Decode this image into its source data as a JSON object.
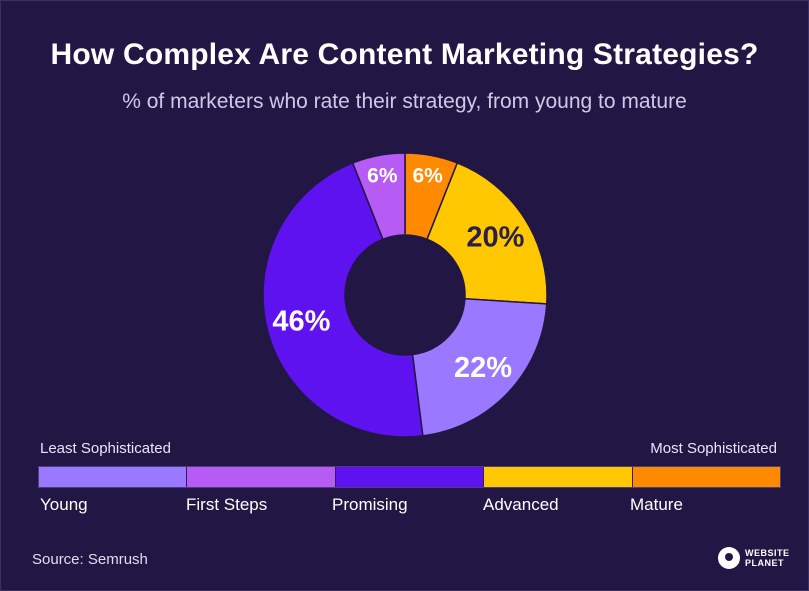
{
  "header": {
    "title": "How Complex Are Content Marketing Strategies?",
    "subtitle": "% of marketers who rate their strategy, from young to mature"
  },
  "chart_data": {
    "type": "pie",
    "variant": "donut",
    "categories": [
      "Mature",
      "Advanced",
      "Young",
      "Promising",
      "First Steps"
    ],
    "values": [
      6,
      20,
      22,
      46,
      6
    ],
    "labels": [
      "6%",
      "20%",
      "22%",
      "46%",
      "6%"
    ],
    "colors": [
      "#ff8a00",
      "#ffc800",
      "#9a78ff",
      "#5e12f0",
      "#b65cf5"
    ],
    "label_colors": [
      "#ffffff",
      "#2a1f4a",
      "#ffffff",
      "#ffffff",
      "#ffffff"
    ]
  },
  "scale": {
    "left_label": "Least Sophisticated",
    "right_label": "Most Sophisticated",
    "segments": [
      {
        "label": "Young",
        "color": "#9a78ff"
      },
      {
        "label": "First Steps",
        "color": "#b65cf5"
      },
      {
        "label": "Promising",
        "color": "#5e12f0"
      },
      {
        "label": "Advanced",
        "color": "#ffc800"
      },
      {
        "label": "Mature",
        "color": "#ff8a00"
      }
    ]
  },
  "footer": {
    "source": "Source: Semrush",
    "brand_line1": "WEBSITE",
    "brand_line2": "PLANET"
  }
}
